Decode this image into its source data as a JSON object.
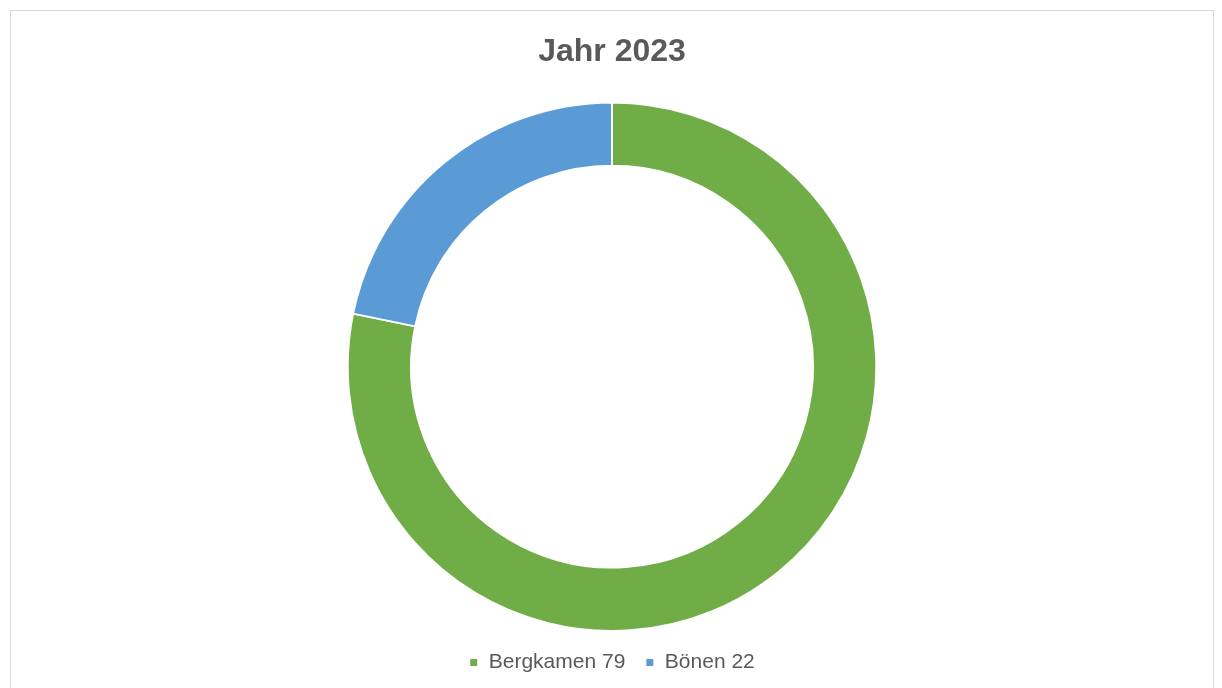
{
  "chart_data": {
    "type": "donut",
    "title": "Jahr 2023",
    "categories": [
      "Bergkamen 79",
      "Bönen 22"
    ],
    "values": [
      79,
      22
    ],
    "colors": [
      "#70ad47",
      "#5b9bd5"
    ],
    "legend": "bottom"
  }
}
